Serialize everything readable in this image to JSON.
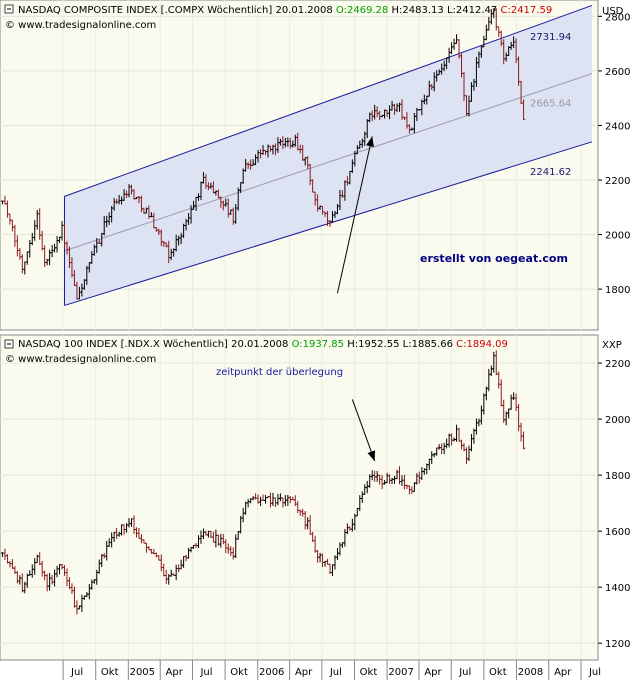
{
  "chart_data": [
    {
      "type": "ohlc",
      "header": {
        "name": "NASDAQ COMPOSITE INDEX [.COMPX  Wöchentlich]",
        "date": "20.01.2008",
        "open_label": "O:",
        "open": "2469.28",
        "high_label": "H:",
        "high": "2483.13",
        "low_label": "L:",
        "low": "2412.47",
        "close_label": "C:",
        "close": "2417.59"
      },
      "source": "© www.tradesignalonline.com",
      "currency": "USD",
      "ylim": [
        1650,
        2860
      ],
      "yticks": [
        1800,
        2000,
        2200,
        2400,
        2600,
        2800
      ],
      "channel": {
        "upper": [
          [
            "2004-07-05",
            2140
          ],
          [
            "2008-08-01",
            2840
          ]
        ],
        "lower": [
          [
            "2004-07-05",
            1740
          ],
          [
            "2008-08-01",
            2340
          ]
        ],
        "mid": [
          [
            "2004-07-05",
            1940
          ],
          [
            "2008-08-01",
            2590
          ]
        ],
        "label_upper": "2731.94",
        "label_mid": "2665.64",
        "label_lower": "2241.62"
      },
      "annotation_text": "erstellt von oegeat.com",
      "arrow": {
        "from": [
          "2006-08-14",
          1785
        ],
        "to": [
          "2006-11-20",
          2360
        ]
      },
      "anchors": [
        [
          "2004-01-12",
          2140
        ],
        [
          "2004-03-08",
          1880
        ],
        [
          "2004-04-19",
          2070
        ],
        [
          "2004-05-10",
          1890
        ],
        [
          "2004-06-28",
          2020
        ],
        [
          "2004-08-09",
          1760
        ],
        [
          "2004-09-27",
          1940
        ],
        [
          "2004-11-15",
          2100
        ],
        [
          "2005-01-03",
          2170
        ],
        [
          "2005-03-07",
          2060
        ],
        [
          "2005-04-25",
          1920
        ],
        [
          "2005-06-20",
          2060
        ],
        [
          "2005-08-01",
          2200
        ],
        [
          "2005-09-19",
          2130
        ],
        [
          "2005-10-24",
          2060
        ],
        [
          "2005-11-21",
          2240
        ],
        [
          "2006-01-09",
          2300
        ],
        [
          "2006-04-17",
          2350
        ],
        [
          "2006-05-22",
          2250
        ],
        [
          "2006-06-12",
          2110
        ],
        [
          "2006-07-24",
          2040
        ],
        [
          "2006-09-18",
          2230
        ],
        [
          "2006-11-20",
          2450
        ],
        [
          "2006-12-18",
          2430
        ],
        [
          "2007-01-29",
          2480
        ],
        [
          "2007-03-05",
          2380
        ],
        [
          "2007-04-30",
          2540
        ],
        [
          "2007-06-04",
          2600
        ],
        [
          "2007-07-16",
          2710
        ],
        [
          "2007-08-13",
          2440
        ],
        [
          "2007-09-24",
          2700
        ],
        [
          "2007-10-29",
          2820
        ],
        [
          "2007-11-26",
          2640
        ],
        [
          "2007-12-24",
          2700
        ],
        [
          "2008-01-21",
          2417.59
        ]
      ]
    },
    {
      "type": "ohlc",
      "header": {
        "name": "NASDAQ 100 INDEX [.NDX.X  Wöchentlich]",
        "date": "20.01.2008",
        "open_label": "O:",
        "open": "1937.85",
        "high_label": "H:",
        "high": "1952.55",
        "low_label": "L:",
        "low": "1885.66",
        "close_label": "C:",
        "close": "1894.09"
      },
      "source": "© www.tradesignalonline.com",
      "currency": "XXP",
      "ylim": [
        1140,
        2300
      ],
      "yticks": [
        1200,
        1400,
        1600,
        1800,
        2000,
        2200
      ],
      "annotation_text": "zeitpunkt der überlegung",
      "arrow": {
        "from": [
          "2006-09-25",
          2070
        ],
        "to": [
          "2006-11-27",
          1850
        ]
      },
      "anchors": [
        [
          "2004-01-12",
          1520
        ],
        [
          "2004-03-08",
          1400
        ],
        [
          "2004-04-19",
          1500
        ],
        [
          "2004-05-17",
          1410
        ],
        [
          "2004-06-28",
          1480
        ],
        [
          "2004-08-09",
          1320
        ],
        [
          "2004-09-27",
          1440
        ],
        [
          "2004-11-15",
          1580
        ],
        [
          "2005-01-03",
          1640
        ],
        [
          "2005-03-07",
          1530
        ],
        [
          "2005-04-25",
          1430
        ],
        [
          "2005-06-20",
          1520
        ],
        [
          "2005-08-01",
          1600
        ],
        [
          "2005-09-19",
          1560
        ],
        [
          "2005-10-24",
          1520
        ],
        [
          "2005-11-21",
          1680
        ],
        [
          "2006-01-09",
          1720
        ],
        [
          "2006-04-17",
          1700
        ],
        [
          "2006-05-22",
          1620
        ],
        [
          "2006-06-12",
          1520
        ],
        [
          "2006-07-24",
          1460
        ],
        [
          "2006-09-18",
          1620
        ],
        [
          "2006-11-20",
          1800
        ],
        [
          "2006-12-18",
          1780
        ],
        [
          "2007-01-29",
          1800
        ],
        [
          "2007-03-05",
          1740
        ],
        [
          "2007-04-30",
          1860
        ],
        [
          "2007-06-04",
          1900
        ],
        [
          "2007-07-16",
          1950
        ],
        [
          "2007-08-13",
          1860
        ],
        [
          "2007-09-24",
          2030
        ],
        [
          "2007-10-29",
          2220
        ],
        [
          "2007-11-26",
          2010
        ],
        [
          "2007-12-24",
          2080
        ],
        [
          "2008-01-21",
          1894.09
        ]
      ]
    }
  ],
  "time_axis": {
    "start": "2004-01-05",
    "end": "2008-08-18",
    "ticks": [
      {
        "label": "Jul",
        "date": "2004-07-01"
      },
      {
        "label": "Okt",
        "date": "2004-10-01"
      },
      {
        "label": "2005",
        "date": "2005-01-01"
      },
      {
        "label": "Apr",
        "date": "2005-04-01"
      },
      {
        "label": "Jul",
        "date": "2005-07-01"
      },
      {
        "label": "Okt",
        "date": "2005-10-01"
      },
      {
        "label": "2006",
        "date": "2006-01-01"
      },
      {
        "label": "Apr",
        "date": "2006-04-01"
      },
      {
        "label": "Jul",
        "date": "2006-07-01"
      },
      {
        "label": "Okt",
        "date": "2006-10-01"
      },
      {
        "label": "2007",
        "date": "2007-01-01"
      },
      {
        "label": "Apr",
        "date": "2007-04-01"
      },
      {
        "label": "Jul",
        "date": "2007-07-01"
      },
      {
        "label": "Okt",
        "date": "2007-10-01"
      },
      {
        "label": "2008",
        "date": "2008-01-01"
      },
      {
        "label": "Apr",
        "date": "2008-04-01"
      },
      {
        "label": "Jul",
        "date": "2008-07-01"
      }
    ]
  },
  "colors": {
    "plot_bg": "#fafaef",
    "channel_fill": "#dde3f2",
    "channel_line": "#1a1a9a",
    "mid_line": "#9a9ab0",
    "bar_up": "#000000",
    "bar_down": "#8b1a1a",
    "open_green": "#00a000",
    "close_red": "#cc0000",
    "annotation_blue": "#1a1aa0"
  }
}
